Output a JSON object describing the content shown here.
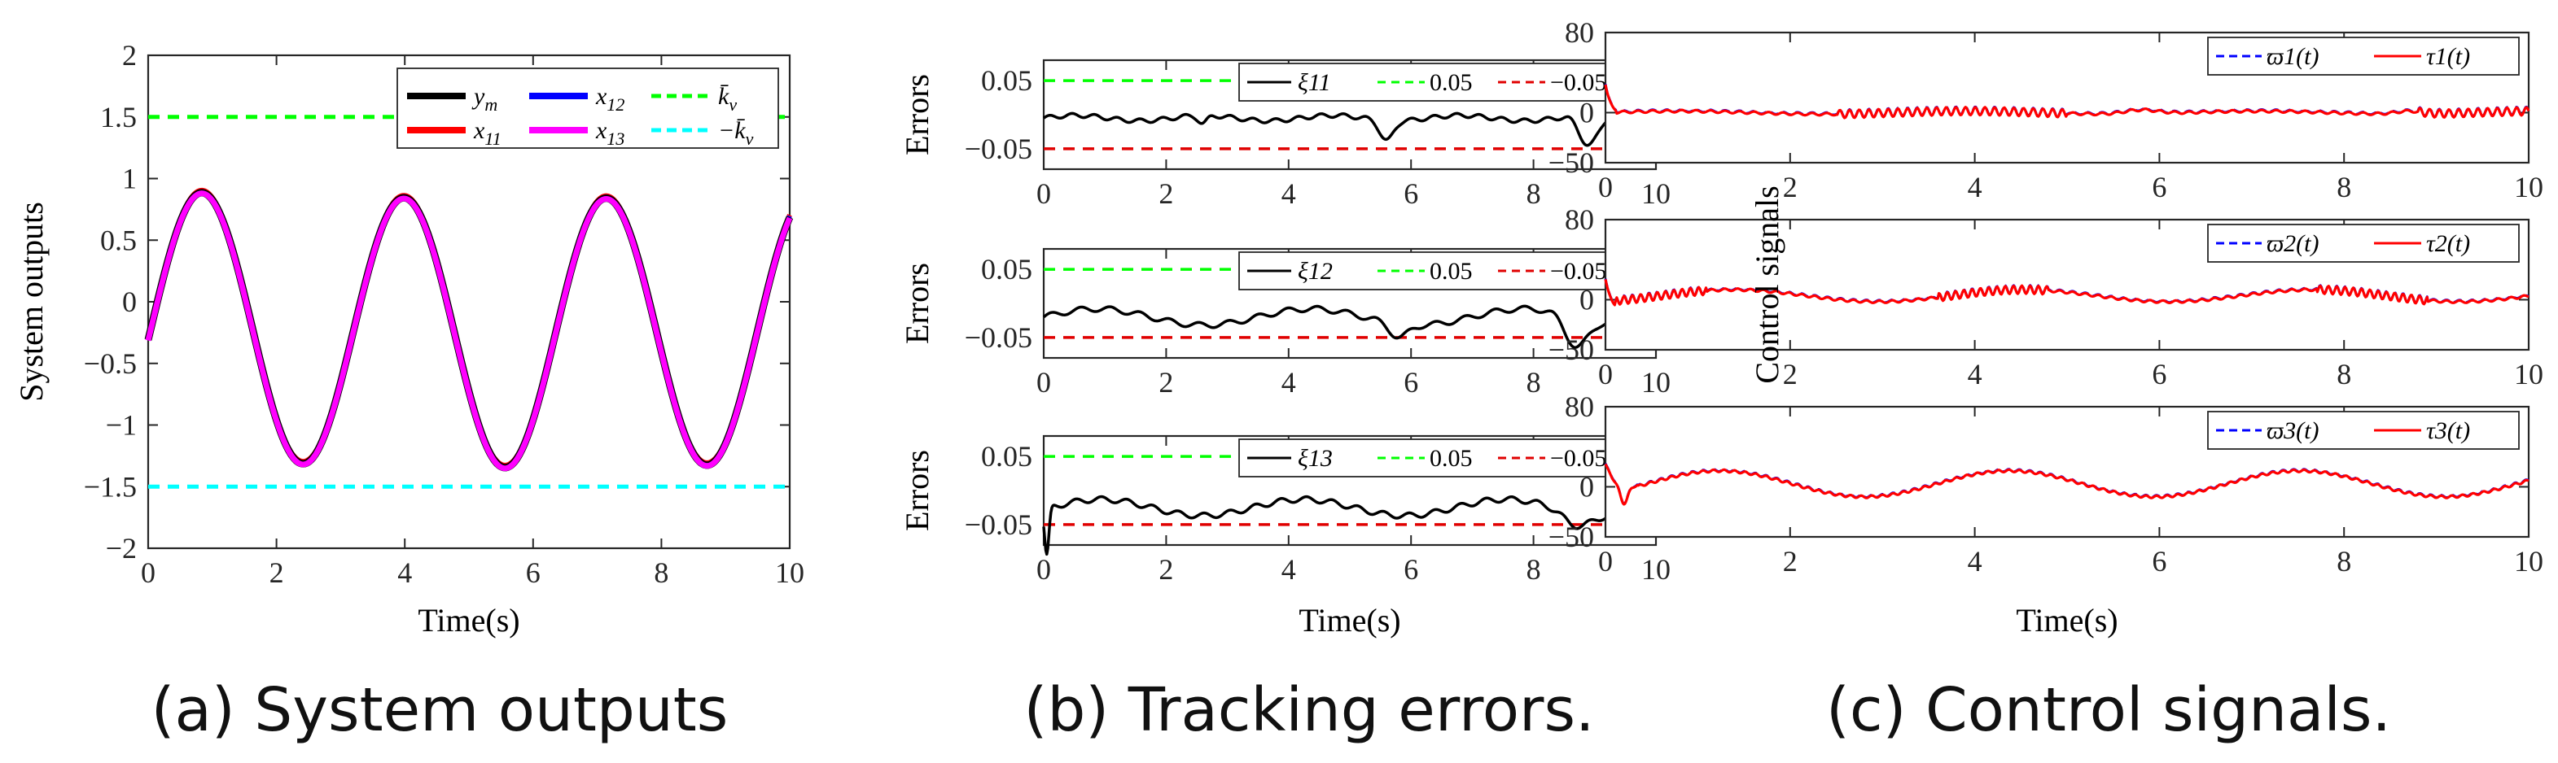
{
  "captions": [
    "(a) System outputs",
    "(b) Tracking errors.",
    "(c) Control signals."
  ],
  "colors": {
    "black": "#000000",
    "red": "#ff0000",
    "blue": "#0000ff",
    "magenta": "#ff00ff",
    "green": "#00ff00",
    "cyan": "#00ffff",
    "darkred": "#e00000"
  },
  "chart_data": [
    {
      "id": "a",
      "type": "line",
      "title": "",
      "xlabel": "Time(s)",
      "ylabel": "System outputs",
      "xlim": [
        0,
        10
      ],
      "ylim": [
        -2,
        2
      ],
      "xticks": [
        "0",
        "2",
        "4",
        "6",
        "8",
        "10"
      ],
      "yticks": [
        "-2",
        "-1.5",
        "-1",
        "-0.5",
        "0",
        "0.5",
        "1",
        "1.5",
        "2"
      ],
      "legend": {
        "position": "top-right",
        "columns": 3,
        "entries": [
          "y_m",
          "x_11",
          "-k_v",
          "x_12",
          "x_13",
          "k_v"
        ]
      },
      "series": [
        {
          "name": "y_m",
          "color": "black",
          "samples": "sine-like output, peaks 0.9, 0.72, 0.67; troughs -1.25, -1.32, -1.35; period approx 3.15 s"
        },
        {
          "name": "x_11",
          "color": "red"
        },
        {
          "name": "x_12",
          "color": "blue"
        },
        {
          "name": "x_13",
          "color": "magenta"
        },
        {
          "name": "k_v",
          "color": "green",
          "constant": 1.5,
          "dashed": true
        },
        {
          "name": "-k_v",
          "color": "cyan",
          "constant": -1.5,
          "dashed": true
        }
      ]
    },
    {
      "id": "b",
      "type": "line",
      "xlabel": "Time(s)",
      "ylabel": "Errors",
      "subplots": [
        {
          "ylim": [
            -0.08,
            0.08
          ],
          "yticks": [
            "-0.05",
            "0.05"
          ],
          "xticks": [
            "0",
            "2",
            "4",
            "6",
            "8",
            "10"
          ],
          "legend": [
            "ξ11",
            "0.05",
            "−0.05"
          ],
          "bounds": [
            0.05,
            -0.05
          ]
        },
        {
          "ylim": [
            -0.08,
            0.08
          ],
          "yticks": [
            "-0.05",
            "0.05"
          ],
          "xticks": [
            "0",
            "2",
            "4",
            "6",
            "8",
            "10"
          ],
          "legend": [
            "ξ12",
            "0.05",
            "−0.05"
          ],
          "bounds": [
            0.05,
            -0.05
          ]
        },
        {
          "ylim": [
            -0.08,
            0.08
          ],
          "yticks": [
            "-0.05",
            "0.05"
          ],
          "xticks": [
            "0",
            "2",
            "4",
            "6",
            "8",
            "10"
          ],
          "legend": [
            "ξ13",
            "0.05",
            "−0.05"
          ],
          "bounds": [
            0.05,
            -0.05
          ]
        }
      ]
    },
    {
      "id": "c",
      "type": "line",
      "xlabel": "Time(s)",
      "ylabel": "Control signals",
      "subplots": [
        {
          "ylim": [
            -50,
            80
          ],
          "yticks": [
            "-50",
            "0",
            "80"
          ],
          "xticks": [
            "0",
            "2",
            "4",
            "6",
            "8",
            "10"
          ],
          "legend": [
            "ϖ1(t)",
            "τ1(t)"
          ]
        },
        {
          "ylim": [
            -50,
            80
          ],
          "yticks": [
            "-50",
            "0",
            "80"
          ],
          "xticks": [
            "0",
            "2",
            "4",
            "6",
            "8",
            "10"
          ],
          "legend": [
            "ϖ2(t)",
            "τ2(t)"
          ]
        },
        {
          "ylim": [
            -50,
            80
          ],
          "yticks": [
            "-50",
            "0",
            "80"
          ],
          "xticks": [
            "0",
            "2",
            "4",
            "6",
            "8",
            "10"
          ],
          "legend": [
            "ϖ3(t)",
            "τ3(t)"
          ]
        }
      ]
    }
  ]
}
